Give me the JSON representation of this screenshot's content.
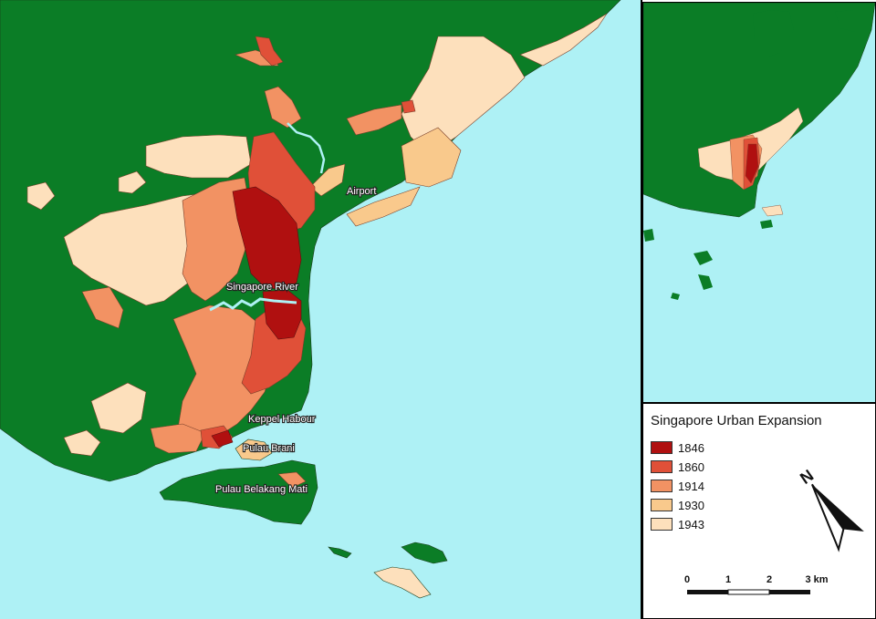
{
  "colors": {
    "sea": "#aef1f5",
    "land": "#0b7d26",
    "y1846": "#b01010",
    "y1860": "#e05038",
    "y1914": "#f29263",
    "y1930": "#f9c98c",
    "y1943": "#fde0bc"
  },
  "labels": {
    "airport": "Airport",
    "singapore_river": "Singapore River",
    "keppel": "Keppel Habour",
    "pulau_brani": "Pulau Brani",
    "pulau_belakang_mati": "Pulau Belakang Mati"
  },
  "legend": {
    "title": "Singapore Urban Expansion",
    "items": [
      {
        "label": "1846",
        "color": "#b01010"
      },
      {
        "label": "1860",
        "color": "#e05038"
      },
      {
        "label": "1914",
        "color": "#f29263"
      },
      {
        "label": "1930",
        "color": "#f9c98c"
      },
      {
        "label": "1943",
        "color": "#fde0bc"
      }
    ]
  },
  "north_arrow": {
    "label": "N"
  },
  "scale_bar": {
    "ticks": [
      "0",
      "1",
      "2",
      "3 km"
    ]
  }
}
